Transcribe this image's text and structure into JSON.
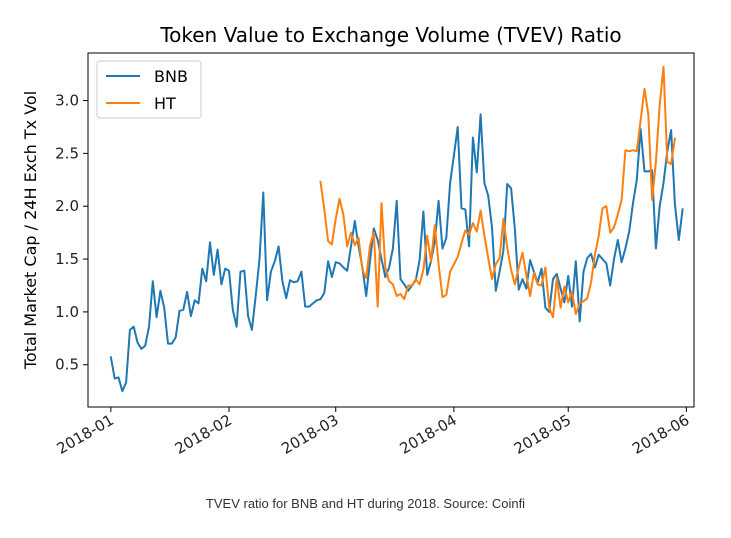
{
  "chart_data": {
    "type": "line",
    "title": "Token Value to Exchange Volume (TVEV) Ratio",
    "xlabel": "",
    "ylabel": "Total Market Cap / 24H Exch Tx Vol",
    "x_type": "date",
    "xlim": [
      "2017-12-26",
      "2018-06-03"
    ],
    "ylim": [
      0.1,
      3.45
    ],
    "x_ticks": [
      "2018-01-01",
      "2018-02-01",
      "2018-03-01",
      "2018-04-01",
      "2018-05-01",
      "2018-06-01"
    ],
    "x_tick_labels": [
      "2018-01",
      "2018-02",
      "2018-03",
      "2018-04",
      "2018-05",
      "2018-06"
    ],
    "y_ticks": [
      0.5,
      1.0,
      1.5,
      2.0,
      2.5,
      3.0
    ],
    "y_tick_labels": [
      "0.5",
      "1.0",
      "1.5",
      "2.0",
      "2.5",
      "3.0"
    ],
    "grid": false,
    "legend_position": "top-left",
    "series": [
      {
        "name": "BNB",
        "color": "#1f77b4",
        "points": [
          [
            "2018-01-01",
            0.57
          ],
          [
            "2018-01-02",
            0.37
          ],
          [
            "2018-01-03",
            0.38
          ],
          [
            "2018-01-04",
            0.25
          ],
          [
            "2018-01-05",
            0.33
          ],
          [
            "2018-01-06",
            0.83
          ],
          [
            "2018-01-07",
            0.86
          ],
          [
            "2018-01-08",
            0.71
          ],
          [
            "2018-01-09",
            0.65
          ],
          [
            "2018-01-10",
            0.68
          ],
          [
            "2018-01-11",
            0.86
          ],
          [
            "2018-01-12",
            1.29
          ],
          [
            "2018-01-13",
            0.95
          ],
          [
            "2018-01-14",
            1.2
          ],
          [
            "2018-01-15",
            1.04
          ],
          [
            "2018-01-16",
            0.7
          ],
          [
            "2018-01-17",
            0.7
          ],
          [
            "2018-01-18",
            0.76
          ],
          [
            "2018-01-19",
            1.01
          ],
          [
            "2018-01-20",
            1.02
          ],
          [
            "2018-01-21",
            1.19
          ],
          [
            "2018-01-22",
            0.96
          ],
          [
            "2018-01-23",
            1.11
          ],
          [
            "2018-01-24",
            1.08
          ],
          [
            "2018-01-25",
            1.41
          ],
          [
            "2018-01-26",
            1.29
          ],
          [
            "2018-01-27",
            1.66
          ],
          [
            "2018-01-28",
            1.35
          ],
          [
            "2018-01-29",
            1.59
          ],
          [
            "2018-01-30",
            1.26
          ],
          [
            "2018-01-31",
            1.41
          ],
          [
            "2018-02-01",
            1.39
          ],
          [
            "2018-02-02",
            1.02
          ],
          [
            "2018-02-03",
            0.86
          ],
          [
            "2018-02-04",
            1.38
          ],
          [
            "2018-02-05",
            1.39
          ],
          [
            "2018-02-06",
            0.96
          ],
          [
            "2018-02-07",
            0.83
          ],
          [
            "2018-02-08",
            1.15
          ],
          [
            "2018-02-09",
            1.5
          ],
          [
            "2018-02-10",
            2.13
          ],
          [
            "2018-02-11",
            1.11
          ],
          [
            "2018-02-12",
            1.38
          ],
          [
            "2018-02-13",
            1.48
          ],
          [
            "2018-02-14",
            1.62
          ],
          [
            "2018-02-15",
            1.29
          ],
          [
            "2018-02-16",
            1.13
          ],
          [
            "2018-02-17",
            1.3
          ],
          [
            "2018-02-18",
            1.28
          ],
          [
            "2018-02-19",
            1.29
          ],
          [
            "2018-02-20",
            1.38
          ],
          [
            "2018-02-21",
            1.05
          ],
          [
            "2018-02-22",
            1.05
          ],
          [
            "2018-02-23",
            1.08
          ],
          [
            "2018-02-24",
            1.11
          ],
          [
            "2018-02-25",
            1.12
          ],
          [
            "2018-02-26",
            1.18
          ],
          [
            "2018-02-27",
            1.48
          ],
          [
            "2018-02-28",
            1.33
          ],
          [
            "2018-03-01",
            1.47
          ],
          [
            "2018-03-02",
            1.46
          ],
          [
            "2018-03-03",
            1.42
          ],
          [
            "2018-03-04",
            1.39
          ],
          [
            "2018-03-05",
            1.62
          ],
          [
            "2018-03-06",
            1.86
          ],
          [
            "2018-03-07",
            1.62
          ],
          [
            "2018-03-08",
            1.42
          ],
          [
            "2018-03-09",
            1.15
          ],
          [
            "2018-03-10",
            1.48
          ],
          [
            "2018-03-11",
            1.79
          ],
          [
            "2018-03-12",
            1.68
          ],
          [
            "2018-03-13",
            1.5
          ],
          [
            "2018-03-14",
            1.33
          ],
          [
            "2018-03-15",
            1.42
          ],
          [
            "2018-03-16",
            1.6
          ],
          [
            "2018-03-17",
            2.05
          ],
          [
            "2018-03-18",
            1.31
          ],
          [
            "2018-03-19",
            1.26
          ],
          [
            "2018-03-20",
            1.2
          ],
          [
            "2018-03-21",
            1.25
          ],
          [
            "2018-03-22",
            1.3
          ],
          [
            "2018-03-23",
            1.49
          ],
          [
            "2018-03-24",
            1.95
          ],
          [
            "2018-03-25",
            1.35
          ],
          [
            "2018-03-26",
            1.48
          ],
          [
            "2018-03-27",
            1.67
          ],
          [
            "2018-03-28",
            2.05
          ],
          [
            "2018-03-29",
            1.6
          ],
          [
            "2018-03-30",
            1.7
          ],
          [
            "2018-03-31",
            2.22
          ],
          [
            "2018-04-01",
            2.48
          ],
          [
            "2018-04-02",
            2.75
          ],
          [
            "2018-04-03",
            1.98
          ],
          [
            "2018-04-04",
            1.97
          ],
          [
            "2018-04-05",
            1.62
          ],
          [
            "2018-04-06",
            2.65
          ],
          [
            "2018-04-07",
            2.32
          ],
          [
            "2018-04-08",
            2.87
          ],
          [
            "2018-04-09",
            2.22
          ],
          [
            "2018-04-10",
            2.1
          ],
          [
            "2018-04-11",
            1.8
          ],
          [
            "2018-04-12",
            1.2
          ],
          [
            "2018-04-13",
            1.38
          ],
          [
            "2018-04-14",
            1.58
          ],
          [
            "2018-04-15",
            2.21
          ],
          [
            "2018-04-16",
            2.17
          ],
          [
            "2018-04-17",
            1.78
          ],
          [
            "2018-04-18",
            1.21
          ],
          [
            "2018-04-19",
            1.31
          ],
          [
            "2018-04-20",
            1.22
          ],
          [
            "2018-04-21",
            1.49
          ],
          [
            "2018-04-22",
            1.38
          ],
          [
            "2018-04-23",
            1.28
          ],
          [
            "2018-04-24",
            1.41
          ],
          [
            "2018-04-25",
            1.04
          ],
          [
            "2018-04-26",
            1.0
          ],
          [
            "2018-04-27",
            1.31
          ],
          [
            "2018-04-28",
            1.36
          ],
          [
            "2018-04-29",
            1.22
          ],
          [
            "2018-04-30",
            1.09
          ],
          [
            "2018-05-01",
            1.34
          ],
          [
            "2018-05-02",
            1.05
          ],
          [
            "2018-05-03",
            1.48
          ],
          [
            "2018-05-04",
            0.91
          ],
          [
            "2018-05-05",
            1.38
          ],
          [
            "2018-05-06",
            1.51
          ],
          [
            "2018-05-07",
            1.55
          ],
          [
            "2018-05-08",
            1.42
          ],
          [
            "2018-05-09",
            1.54
          ],
          [
            "2018-05-10",
            1.5
          ],
          [
            "2018-05-11",
            1.46
          ],
          [
            "2018-05-12",
            1.25
          ],
          [
            "2018-05-13",
            1.5
          ],
          [
            "2018-05-14",
            1.68
          ],
          [
            "2018-05-15",
            1.47
          ],
          [
            "2018-05-16",
            1.6
          ],
          [
            "2018-05-17",
            1.76
          ],
          [
            "2018-05-18",
            2.03
          ],
          [
            "2018-05-19",
            2.25
          ],
          [
            "2018-05-20",
            2.73
          ],
          [
            "2018-05-21",
            2.33
          ],
          [
            "2018-05-22",
            2.33
          ],
          [
            "2018-05-23",
            2.34
          ],
          [
            "2018-05-24",
            1.6
          ],
          [
            "2018-05-25",
            2.0
          ],
          [
            "2018-05-26",
            2.22
          ],
          [
            "2018-05-27",
            2.52
          ],
          [
            "2018-05-28",
            2.72
          ],
          [
            "2018-05-29",
            2.02
          ],
          [
            "2018-05-30",
            1.68
          ],
          [
            "2018-05-31",
            1.97
          ]
        ]
      },
      {
        "name": "HT",
        "color": "#ff7f0e",
        "points": [
          [
            "2018-02-25",
            2.23
          ],
          [
            "2018-02-26",
            1.97
          ],
          [
            "2018-02-27",
            1.67
          ],
          [
            "2018-02-28",
            1.64
          ],
          [
            "2018-03-01",
            1.88
          ],
          [
            "2018-03-02",
            2.07
          ],
          [
            "2018-03-03",
            1.92
          ],
          [
            "2018-03-04",
            1.62
          ],
          [
            "2018-03-05",
            1.75
          ],
          [
            "2018-03-06",
            1.63
          ],
          [
            "2018-03-07",
            1.7
          ],
          [
            "2018-03-08",
            1.4
          ],
          [
            "2018-03-09",
            1.32
          ],
          [
            "2018-03-10",
            1.63
          ],
          [
            "2018-03-11",
            1.75
          ],
          [
            "2018-03-12",
            1.05
          ],
          [
            "2018-03-13",
            2.03
          ],
          [
            "2018-03-14",
            1.42
          ],
          [
            "2018-03-15",
            1.29
          ],
          [
            "2018-03-16",
            1.26
          ],
          [
            "2018-03-17",
            1.15
          ],
          [
            "2018-03-18",
            1.17
          ],
          [
            "2018-03-19",
            1.12
          ],
          [
            "2018-03-20",
            1.25
          ],
          [
            "2018-03-21",
            1.25
          ],
          [
            "2018-03-22",
            1.31
          ],
          [
            "2018-03-23",
            1.26
          ],
          [
            "2018-03-24",
            1.4
          ],
          [
            "2018-03-25",
            1.72
          ],
          [
            "2018-03-26",
            1.48
          ],
          [
            "2018-03-27",
            1.82
          ],
          [
            "2018-03-28",
            1.45
          ],
          [
            "2018-03-29",
            1.14
          ],
          [
            "2018-03-30",
            1.16
          ],
          [
            "2018-03-31",
            1.38
          ],
          [
            "2018-04-01",
            1.45
          ],
          [
            "2018-04-02",
            1.52
          ],
          [
            "2018-04-03",
            1.65
          ],
          [
            "2018-04-04",
            1.77
          ],
          [
            "2018-04-05",
            1.73
          ],
          [
            "2018-04-06",
            1.84
          ],
          [
            "2018-04-07",
            1.76
          ],
          [
            "2018-04-08",
            1.96
          ],
          [
            "2018-04-09",
            1.72
          ],
          [
            "2018-04-10",
            1.51
          ],
          [
            "2018-04-11",
            1.31
          ],
          [
            "2018-04-12",
            1.45
          ],
          [
            "2018-04-13",
            1.51
          ],
          [
            "2018-04-14",
            1.88
          ],
          [
            "2018-04-15",
            1.61
          ],
          [
            "2018-04-16",
            1.4
          ],
          [
            "2018-04-17",
            1.26
          ],
          [
            "2018-04-18",
            1.42
          ],
          [
            "2018-04-19",
            1.56
          ],
          [
            "2018-04-20",
            1.35
          ],
          [
            "2018-04-21",
            1.15
          ],
          [
            "2018-04-22",
            1.37
          ],
          [
            "2018-04-23",
            1.26
          ],
          [
            "2018-04-24",
            1.25
          ],
          [
            "2018-04-25",
            1.42
          ],
          [
            "2018-04-26",
            1.04
          ],
          [
            "2018-04-27",
            0.95
          ],
          [
            "2018-04-28",
            1.32
          ],
          [
            "2018-04-29",
            1.04
          ],
          [
            "2018-04-30",
            1.24
          ],
          [
            "2018-05-01",
            1.09
          ],
          [
            "2018-05-02",
            1.19
          ],
          [
            "2018-05-03",
            0.98
          ],
          [
            "2018-05-04",
            1.08
          ],
          [
            "2018-05-05",
            1.1
          ],
          [
            "2018-05-06",
            1.13
          ],
          [
            "2018-05-07",
            1.28
          ],
          [
            "2018-05-08",
            1.54
          ],
          [
            "2018-05-09",
            1.72
          ],
          [
            "2018-05-10",
            1.98
          ],
          [
            "2018-05-11",
            2.0
          ],
          [
            "2018-05-12",
            1.75
          ],
          [
            "2018-05-13",
            1.8
          ],
          [
            "2018-05-14",
            1.92
          ],
          [
            "2018-05-15",
            2.06
          ],
          [
            "2018-05-16",
            2.53
          ],
          [
            "2018-05-17",
            2.52
          ],
          [
            "2018-05-18",
            2.53
          ],
          [
            "2018-05-19",
            2.52
          ],
          [
            "2018-05-20",
            2.81
          ],
          [
            "2018-05-21",
            3.11
          ],
          [
            "2018-05-22",
            2.87
          ],
          [
            "2018-05-23",
            2.06
          ],
          [
            "2018-05-24",
            2.42
          ],
          [
            "2018-05-25",
            2.96
          ],
          [
            "2018-05-26",
            3.32
          ],
          [
            "2018-05-27",
            2.42
          ],
          [
            "2018-05-28",
            2.4
          ],
          [
            "2018-05-29",
            2.64
          ]
        ]
      }
    ]
  },
  "caption": "TVEV ratio for BNB and HT during 2018. Source: Coinfi"
}
